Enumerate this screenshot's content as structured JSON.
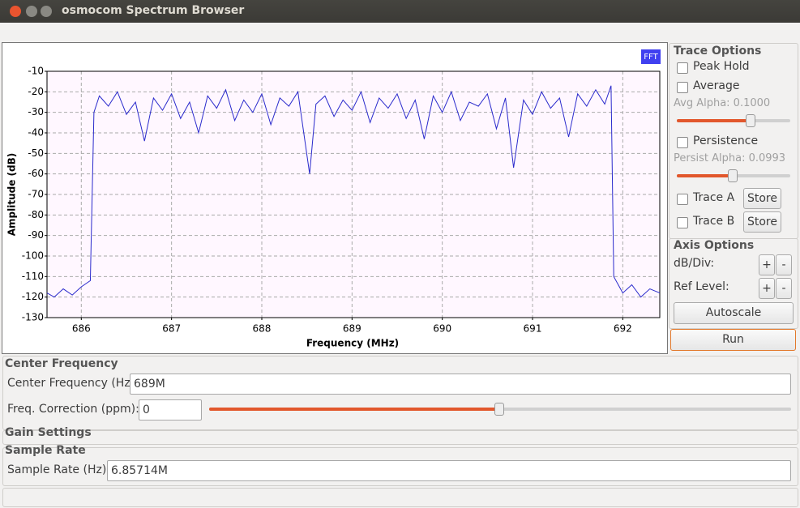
{
  "window": {
    "title": "osmocom Spectrum Browser"
  },
  "chart_data": {
    "type": "line",
    "badge": "FFT",
    "xlabel": "Frequency (MHz)",
    "ylabel": "Amplitude (dB)",
    "x": [
      685.62,
      685.7,
      685.8,
      685.9,
      686,
      686.1,
      686.14,
      686.2,
      686.3,
      686.4,
      686.5,
      686.6,
      686.7,
      686.8,
      686.9,
      687,
      687.1,
      687.2,
      687.3,
      687.4,
      687.5,
      687.6,
      687.7,
      687.8,
      687.9,
      688,
      688.1,
      688.2,
      688.3,
      688.4,
      688.53,
      688.6,
      688.7,
      688.8,
      688.9,
      689,
      689.1,
      689.2,
      689.3,
      689.4,
      689.5,
      689.6,
      689.7,
      689.8,
      689.9,
      690,
      690.1,
      690.2,
      690.3,
      690.4,
      690.5,
      690.6,
      690.7,
      690.79,
      690.9,
      691,
      691.1,
      691.2,
      691.3,
      691.4,
      691.5,
      691.6,
      691.7,
      691.8,
      691.87,
      691.9,
      692,
      692.1,
      692.2,
      692.3,
      692.41
    ],
    "series": [
      {
        "color": "#2a2acc",
        "values": [
          -118,
          -120,
          -116,
          -119,
          -115,
          -112,
          -30,
          -22,
          -27,
          -20,
          -31,
          -25,
          -44,
          -23,
          -29,
          -21,
          -33,
          -25,
          -40,
          -22,
          -28,
          -19,
          -34,
          -24,
          -30,
          -21,
          -36,
          -23,
          -27,
          -20,
          -60,
          -26,
          -22,
          -32,
          -24,
          -29,
          -20,
          -35,
          -23,
          -28,
          -21,
          -33,
          -24,
          -43,
          -22,
          -30,
          -20,
          -34,
          -25,
          -27,
          -21,
          -38,
          -23,
          -57,
          -24,
          -31,
          -20,
          -28,
          -23,
          -42,
          -21,
          -27,
          -19,
          -26,
          -17,
          -110,
          -118,
          -114,
          -120,
          -116,
          -118
        ]
      }
    ],
    "xlim": [
      685.62,
      692.41
    ],
    "ylim": [
      -130,
      -10
    ],
    "xticks": [
      686,
      687,
      688,
      689,
      690,
      691,
      692
    ],
    "yticks": [
      -10,
      -20,
      -30,
      -40,
      -50,
      -60,
      -70,
      -80,
      -90,
      -100,
      -110,
      -120,
      -130
    ],
    "grid": true
  },
  "trace_options": {
    "title": "Trace Options",
    "peak_hold": "Peak Hold",
    "average": "Average",
    "avg_alpha": "Avg Alpha: 0.1000",
    "persistence": "Persistence",
    "persist_alpha": "Persist Alpha: 0.0993",
    "trace_a": "Trace A",
    "store_a": "Store",
    "trace_b": "Trace B",
    "store_b": "Store"
  },
  "axis_options": {
    "title": "Axis Options",
    "db_div": "dB/Div:",
    "db_plus": "+",
    "db_minus": "-",
    "ref_level": "Ref Level:",
    "ref_plus": "+",
    "ref_minus": "-",
    "autoscale": "Autoscale"
  },
  "run": "Run",
  "center_frequency": {
    "title": "Center Frequency",
    "label": "Center Frequency (Hz):",
    "value": "689M",
    "corr_label": "Freq. Correction (ppm):",
    "corr_value": "0"
  },
  "gain_settings": {
    "title": "Gain Settings"
  },
  "sample_rate": {
    "title": "Sample Rate",
    "label": "Sample Rate (Hz):",
    "value": "6.85714M"
  }
}
